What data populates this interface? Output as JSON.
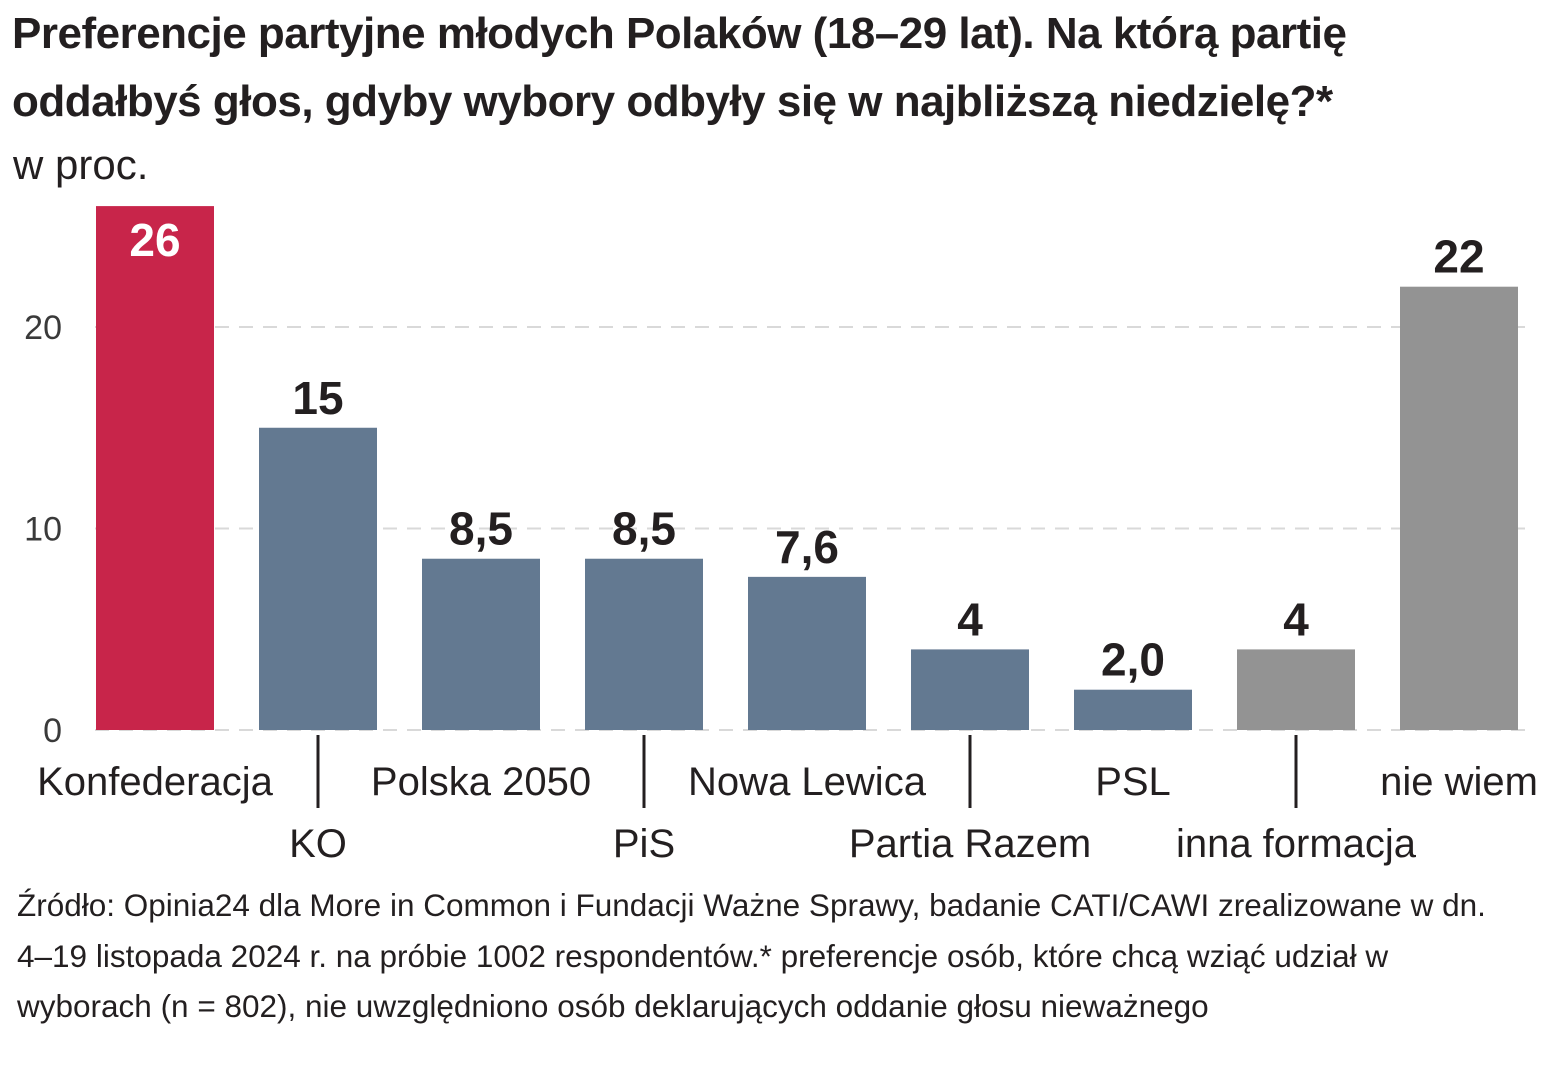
{
  "title": "Preferencje partyjne młodych Polaków (18–29 lat). Na którą partię oddałbyś głos, gdyby wybory odbyły się w najbliższą niedzielę?*",
  "unit": "w proc.",
  "source": "Źródło: Opinia24 dla More in Common i Fundacji Ważne Sprawy, badanie CATI/CAWI zrealizowane w dn. 4–19 listopada 2024 r. na próbie 1002 respondentów.* preferencje osób, które chcą wziąć udział w wyborach (n = 802), nie uwzględniono osób deklarujących oddanie głosu nieważnego",
  "colors": {
    "highlight": "#c8254a",
    "party": "#637991",
    "other": "#939393",
    "grid": "#d9d9d9",
    "text": "#231f20"
  },
  "chart_data": {
    "type": "bar",
    "categories": [
      "Konfederacja",
      "KO",
      "Polska 2050",
      "PiS",
      "Nowa Lewica",
      "Partia Razem",
      "PSL",
      "inna formacja",
      "nie wiem"
    ],
    "values": [
      26,
      15,
      8.5,
      8.5,
      7.6,
      4,
      2.0,
      4,
      22
    ],
    "value_labels": [
      "26",
      "15",
      "8,5",
      "8,5",
      "7,6",
      "4",
      "2,0",
      "4",
      "22"
    ],
    "bar_colors": [
      "highlight",
      "party",
      "party",
      "party",
      "party",
      "party",
      "party",
      "other",
      "other"
    ],
    "label_rows": [
      "upper",
      "lower",
      "upper",
      "lower",
      "upper",
      "lower",
      "upper",
      "lower",
      "upper"
    ],
    "yticks": [
      0,
      10,
      20
    ],
    "ylim": [
      0,
      26
    ],
    "grid": true,
    "grid_style": "dashed"
  }
}
